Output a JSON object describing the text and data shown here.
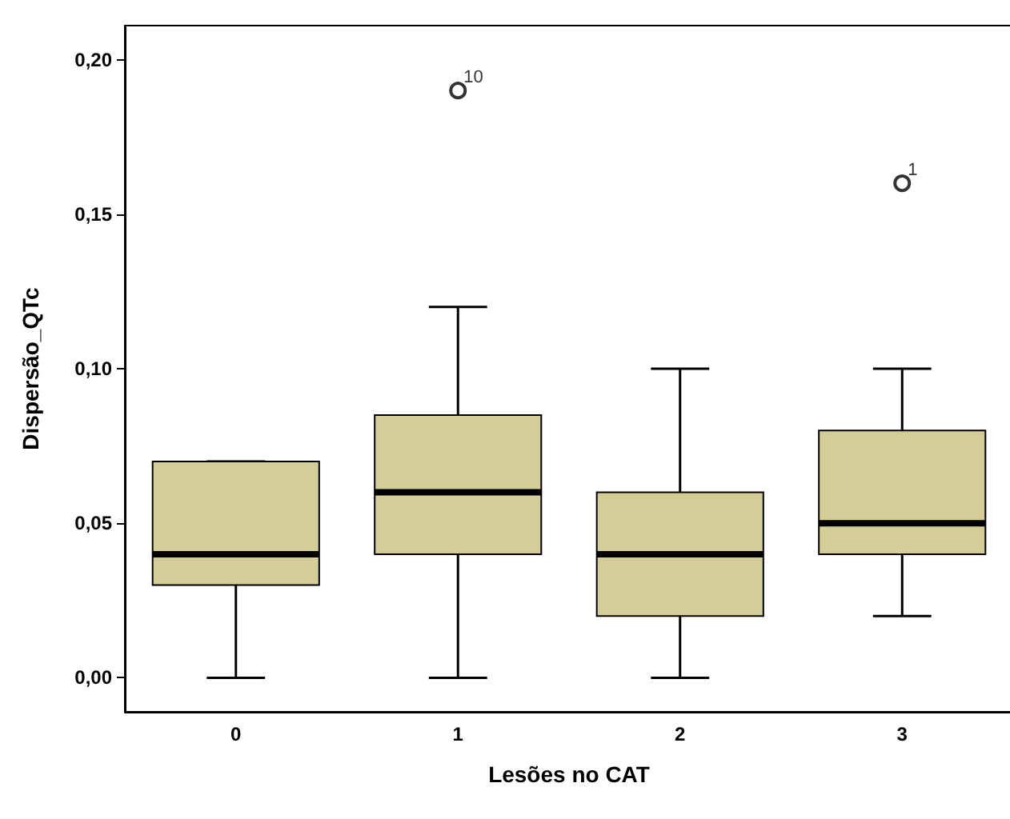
{
  "chart_data": {
    "type": "box",
    "xlabel": "Lesões no CAT",
    "ylabel": "Dispersão_QTc",
    "categories": [
      "0",
      "1",
      "2",
      "3"
    ],
    "boxes": [
      {
        "low": 0,
        "q1": 0.03,
        "median": 0.04,
        "q3": 0.07,
        "high": 0.07
      },
      {
        "low": 0,
        "q1": 0.04,
        "median": 0.06,
        "q3": 0.085,
        "high": 0.12,
        "outliers": [
          0.19
        ]
      },
      {
        "low": 0,
        "q1": 0.02,
        "median": 0.04,
        "q3": 0.06,
        "high": 0.1
      },
      {
        "low": 0.02,
        "q1": 0.04,
        "median": 0.05,
        "q3": 0.08,
        "high": 0.1,
        "outliers": [
          0.16
        ]
      }
    ],
    "color": "#d4cd98",
    "marker": "circle",
    "ylim": [
      -0.011,
      0.211
    ],
    "yticks": [
      {
        "value": 0,
        "label": "0,00"
      },
      {
        "value": 0.05,
        "label": "0,05"
      },
      {
        "value": 0.1,
        "label": "0,10"
      },
      {
        "value": 0.15,
        "label": "0,15"
      },
      {
        "value": 0.2,
        "label": "0,20"
      }
    ],
    "annotations": [
      "10",
      "1"
    ],
    "grid": false
  }
}
